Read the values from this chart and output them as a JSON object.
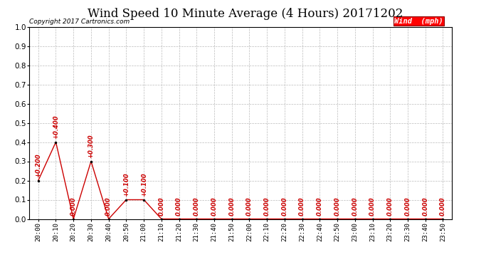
{
  "title": "Wind Speed 10 Minute Average (4 Hours) 20171202",
  "copyright": "Copyright 2017 Cartronics.com",
  "legend_label": "Wind  (mph)",
  "x_labels": [
    "20:00",
    "20:10",
    "20:20",
    "20:30",
    "20:40",
    "20:50",
    "21:00",
    "21:10",
    "21:20",
    "21:30",
    "21:40",
    "21:50",
    "22:00",
    "22:10",
    "22:20",
    "22:30",
    "22:40",
    "22:50",
    "23:00",
    "23:10",
    "23:20",
    "23:30",
    "23:40",
    "23:50"
  ],
  "y_values": [
    0.2,
    0.4,
    0.0,
    0.3,
    0.0,
    0.1,
    0.1,
    0.0,
    0.0,
    0.0,
    0.0,
    0.0,
    0.0,
    0.0,
    0.0,
    0.0,
    0.0,
    0.0,
    0.0,
    0.0,
    0.0,
    0.0,
    0.0,
    0.0
  ],
  "line_color": "#cc0000",
  "marker_color": "#000000",
  "background_color": "#ffffff",
  "grid_color": "#bbbbbb",
  "ylim": [
    0.0,
    1.0
  ],
  "yticks": [
    0.0,
    0.1,
    0.2,
    0.3,
    0.4,
    0.5,
    0.6,
    0.7,
    0.8,
    0.9,
    1.0
  ],
  "title_fontsize": 12,
  "label_fontsize": 6.5,
  "annotation_fontsize": 6,
  "copyright_fontsize": 6.5,
  "legend_fontsize": 7.5
}
